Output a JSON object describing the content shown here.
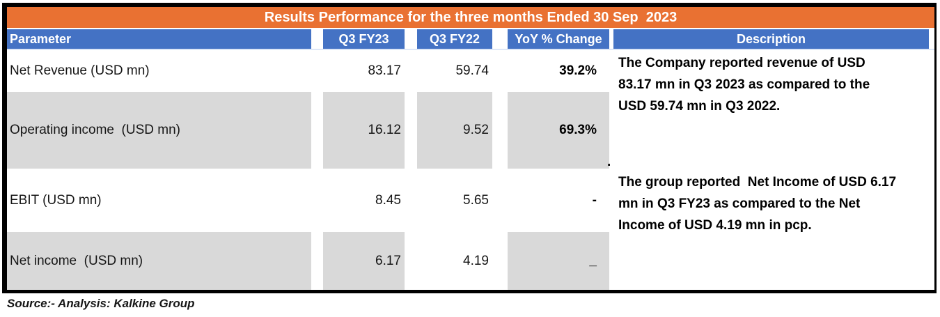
{
  "title": "Results Performance for the three months Ended 30 Sep  2023",
  "table": {
    "headers": {
      "parameter": "Parameter",
      "q3fy23": "Q3 FY23",
      "q3fy22": "Q3 FY22",
      "yoy": "YoY % Change",
      "description": "Description"
    },
    "rows": [
      {
        "parameter": "Net Revenue (USD mn)",
        "q3fy23": "83.17",
        "q3fy22": "59.74",
        "yoy": "39.2%"
      },
      {
        "parameter": "Operating income  (USD mn)",
        "q3fy23": "16.12",
        "q3fy22": "9.52",
        "yoy": "69.3%"
      },
      {
        "parameter": "EBIT (USD mn)",
        "q3fy23": "8.45",
        "q3fy22": "5.65",
        "yoy": "-"
      },
      {
        "parameter": "Net income  (USD mn)",
        "q3fy23": "6.17",
        "q3fy22": "4.19",
        "yoy": "_"
      }
    ],
    "stray_period": "."
  },
  "descriptions": [
    {
      "lines": [
        "The Company reported revenue of USD",
        "83.17 mn in Q3 2023 as compared to the",
        "USD 59.74 mn in Q3 2022."
      ]
    },
    {
      "lines": [
        "The group reported  Net Income of USD 6.17",
        "mn in Q3 FY23 as compared to the Net",
        "Income of USD 4.19 mn in pcp."
      ]
    }
  ],
  "footer": {
    "source": "Source:- Analysis: Kalkine Group"
  },
  "colors": {
    "title_bar_orange": "#E97132",
    "header_blue": "#4472C4",
    "row_gray": "#D9D9D9",
    "border_black": "#000000",
    "text_white": "#FFFFFF",
    "text_black": "#161616"
  },
  "chart_data": {
    "type": "table",
    "title": "Results Performance for the three months Ended 30 Sep 2023",
    "columns": [
      "Parameter",
      "Q3 FY23",
      "Q3 FY22",
      "YoY % Change",
      "Description"
    ],
    "rows": [
      [
        "Net Revenue (USD mn)",
        83.17,
        59.74,
        "39.2%",
        "The Company reported revenue of USD 83.17 mn in Q3 2023 as compared to the USD 59.74 mn in Q3 2022."
      ],
      [
        "Operating income (USD mn)",
        16.12,
        9.52,
        "69.3%",
        ""
      ],
      [
        "EBIT (USD mn)",
        8.45,
        5.65,
        "-",
        "The group reported Net Income of USD 6.17 mn in Q3 FY23 as compared to the Net Income of USD 4.19 mn in pcp."
      ],
      [
        "Net income (USD mn)",
        6.17,
        4.19,
        "_",
        ""
      ]
    ],
    "source": "Source:- Analysis: Kalkine Group"
  }
}
